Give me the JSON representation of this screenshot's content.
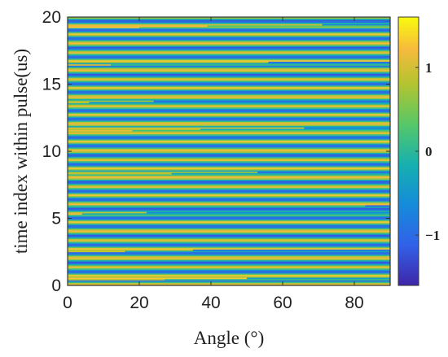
{
  "chart_data": {
    "type": "heatmap",
    "title": "",
    "xlabel": "Angle (°)",
    "ylabel": "time index within pulse(us)",
    "xlim": [
      0,
      90
    ],
    "ylim": [
      0,
      20
    ],
    "xticks": [
      0,
      20,
      40,
      60,
      80
    ],
    "yticks": [
      0,
      5,
      10,
      15,
      20
    ],
    "colormap": "parula",
    "colorbar": {
      "range": [
        -1.6,
        1.6
      ],
      "ticks": [
        -1,
        0,
        1
      ],
      "tick_labels": [
        "−1",
        "0",
        "1"
      ]
    },
    "row_height": 0.1,
    "value_pattern": [
      1.2,
      0.9,
      0.1,
      -0.9,
      -1.0,
      -0.3,
      0.7,
      1.3,
      0.4,
      -0.7,
      -1.1,
      -0.5,
      0.3,
      1.1,
      0.8,
      -0.1,
      -0.9,
      -1.2,
      -0.2,
      0.6
    ],
    "transitions": [
      {
        "y": 0.4,
        "x": 27,
        "left": 0.9,
        "right": 0.1
      },
      {
        "y": 0.5,
        "x": 50,
        "left": 1.3,
        "right": -0.4
      },
      {
        "y": 2.5,
        "x": 16,
        "left": 0.9,
        "right": -0.3
      },
      {
        "y": 2.6,
        "x": 35,
        "left": 0.8,
        "right": -0.9
      },
      {
        "y": 5.3,
        "x": 4,
        "left": 1.2,
        "right": -0.2
      },
      {
        "y": 5.4,
        "x": 22,
        "left": 0.9,
        "right": -0.6
      },
      {
        "y": 5.9,
        "x": 83,
        "left": 0.2,
        "right": -1.1
      },
      {
        "y": 8.3,
        "x": 29,
        "left": 0.9,
        "right": -0.3
      },
      {
        "y": 8.4,
        "x": 53,
        "left": 0.7,
        "right": -1.0
      },
      {
        "y": 11.5,
        "x": 18,
        "left": 1.1,
        "right": 0.2
      },
      {
        "y": 11.6,
        "x": 37,
        "left": 0.8,
        "right": -0.2
      },
      {
        "y": 11.7,
        "x": 66,
        "left": 1.0,
        "right": -0.8
      },
      {
        "y": 13.6,
        "x": 6,
        "left": 0.9,
        "right": -0.5
      },
      {
        "y": 13.7,
        "x": 24,
        "left": 0.7,
        "right": -1.0
      },
      {
        "y": 16.4,
        "x": 12,
        "left": 1.1,
        "right": 0.1
      },
      {
        "y": 16.6,
        "x": 56,
        "left": 0.8,
        "right": -1.0
      },
      {
        "y": 19.2,
        "x": 20,
        "left": 1.3,
        "right": 0.6
      },
      {
        "y": 19.3,
        "x": 39,
        "left": 1.2,
        "right": 0.3
      },
      {
        "y": 19.4,
        "x": 71,
        "left": 1.0,
        "right": -0.7
      }
    ]
  }
}
